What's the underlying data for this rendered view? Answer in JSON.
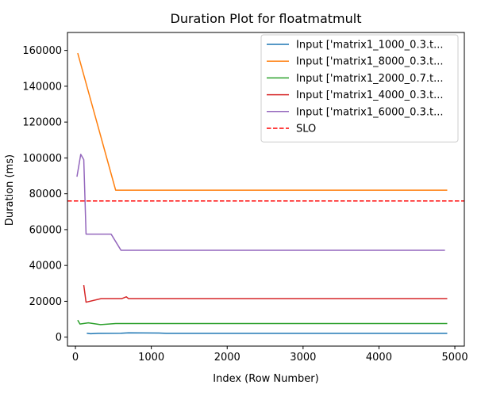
{
  "chart_data": {
    "type": "line",
    "title": "Duration Plot for floatmatmult",
    "xlabel": "Index (Row Number)",
    "ylabel": "Duration (ms)",
    "xlim": [
      -105,
      5125
    ],
    "ylim": [
      -5000,
      170000
    ],
    "xticks": [
      0,
      1000,
      2000,
      3000,
      4000,
      5000
    ],
    "yticks": [
      0,
      20000,
      40000,
      60000,
      80000,
      100000,
      120000,
      140000,
      160000
    ],
    "legend_position": "upper right",
    "grid": false,
    "series": [
      {
        "name": "Input ['matrix1_1000_0.3.t...",
        "color": "#1f77b4",
        "x": [
          150,
          200,
          300,
          600,
          700,
          1100,
          1200,
          4900
        ],
        "y": [
          2200,
          1900,
          2100,
          2200,
          2400,
          2300,
          2100,
          2100
        ]
      },
      {
        "name": "Input ['matrix1_8000_0.3.t...",
        "color": "#ff7f0e",
        "x": [
          30,
          530,
          4900
        ],
        "y": [
          158500,
          82000,
          82000
        ]
      },
      {
        "name": "Input ['matrix1_2000_0.7.t...",
        "color": "#2ca02c",
        "x": [
          30,
          60,
          170,
          330,
          530,
          4900
        ],
        "y": [
          9500,
          7300,
          8000,
          7000,
          7600,
          7600
        ]
      },
      {
        "name": "Input ['matrix1_4000_0.3.t...",
        "color": "#d62728",
        "x": [
          110,
          140,
          340,
          610,
          670,
          700,
          1130,
          4900
        ],
        "y": [
          29000,
          19500,
          21500,
          21500,
          22500,
          21500,
          21500,
          21500
        ]
      },
      {
        "name": "Input ['matrix1_6000_0.3.t...",
        "color": "#9467bd",
        "x": [
          20,
          70,
          110,
          140,
          470,
          600,
          4870
        ],
        "y": [
          89500,
          102000,
          99000,
          57500,
          57500,
          48500,
          48500
        ]
      }
    ],
    "reference_line": {
      "name": "SLO",
      "y": 76000,
      "color": "#ff0000",
      "style": "dashed"
    }
  }
}
